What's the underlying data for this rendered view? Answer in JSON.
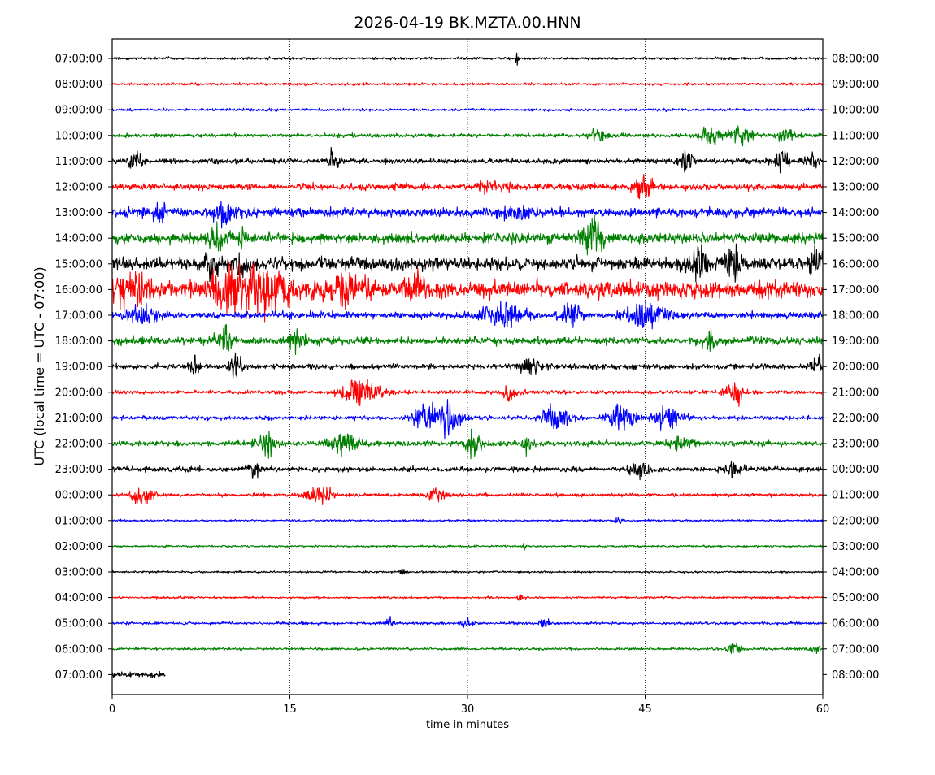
{
  "chart_data": {
    "type": "line",
    "title": "2026-04-19 BK.MZTA.00.HNN",
    "xlabel": "time in minutes",
    "ylabel": "UTC (local time = UTC - 07:00)",
    "xlim": [
      0,
      60
    ],
    "x_ticks": [
      0,
      15,
      30,
      45,
      60
    ],
    "grid_x": [
      15,
      30,
      45
    ],
    "grid": "x-only, dotted",
    "color_cycle": [
      "#000000",
      "#ff0000",
      "#0000ff",
      "#008000"
    ],
    "left_tick_labels": [
      "07:00:00",
      "08:00:00",
      "09:00:00",
      "10:00:00",
      "11:00:00",
      "12:00:00",
      "13:00:00",
      "14:00:00",
      "15:00:00",
      "16:00:00",
      "17:00:00",
      "18:00:00",
      "19:00:00",
      "20:00:00",
      "21:00:00",
      "22:00:00",
      "23:00:00",
      "00:00:00",
      "01:00:00",
      "02:00:00",
      "03:00:00",
      "04:00:00",
      "05:00:00",
      "06:00:00",
      "07:00:00"
    ],
    "right_tick_labels": [
      "08:00:00",
      "09:00:00",
      "10:00:00",
      "11:00:00",
      "12:00:00",
      "13:00:00",
      "14:00:00",
      "15:00:00",
      "16:00:00",
      "17:00:00",
      "18:00:00",
      "19:00:00",
      "20:00:00",
      "21:00:00",
      "22:00:00",
      "23:00:00",
      "00:00:00",
      "01:00:00",
      "02:00:00",
      "03:00:00",
      "04:00:00",
      "05:00:00",
      "06:00:00",
      "07:00:00",
      "08:00:00"
    ],
    "traces": [
      {
        "start": "07:00:00",
        "end_minute": 60,
        "noise": 0.2,
        "bursts": [
          [
            34.2,
            0.05,
            5.5
          ]
        ]
      },
      {
        "start": "08:00:00",
        "end_minute": 60,
        "noise": 0.2,
        "bursts": []
      },
      {
        "start": "09:00:00",
        "end_minute": 60,
        "noise": 0.2,
        "bursts": []
      },
      {
        "start": "10:00:00",
        "end_minute": 60,
        "noise": 0.3,
        "bursts": [
          [
            41,
            0.5,
            1.2
          ],
          [
            50.5,
            0.6,
            1.4
          ],
          [
            53,
            0.8,
            1.5
          ],
          [
            57,
            0.6,
            1.0
          ]
        ]
      },
      {
        "start": "11:00:00",
        "end_minute": 60,
        "noise": 0.4,
        "bursts": [
          [
            2,
            0.5,
            1.2
          ],
          [
            18.7,
            0.3,
            1.8
          ],
          [
            48.5,
            0.4,
            1.6
          ],
          [
            56.5,
            0.4,
            1.4
          ],
          [
            59,
            0.4,
            1.2
          ]
        ]
      },
      {
        "start": "12:00:00",
        "end_minute": 60,
        "noise": 0.5,
        "bursts": [
          [
            44.8,
            0.5,
            2.0
          ],
          [
            32,
            0.8,
            1.0
          ]
        ]
      },
      {
        "start": "13:00:00",
        "end_minute": 60,
        "noise": 0.7,
        "bursts": [
          [
            9.5,
            0.6,
            1.8
          ],
          [
            34,
            0.8,
            1.2
          ],
          [
            4,
            0.6,
            1.0
          ]
        ]
      },
      {
        "start": "14:00:00",
        "end_minute": 60,
        "noise": 0.8,
        "bursts": [
          [
            8.8,
            0.6,
            1.6
          ],
          [
            40.5,
            0.6,
            2.8
          ],
          [
            11,
            0.3,
            1.4
          ]
        ]
      },
      {
        "start": "15:00:00",
        "end_minute": 60,
        "noise": 1.0,
        "bursts": [
          [
            8.5,
            0.5,
            1.8
          ],
          [
            10.8,
            0.3,
            2.2
          ],
          [
            52.5,
            0.5,
            2.4
          ],
          [
            59.5,
            0.4,
            2.0
          ],
          [
            49.5,
            0.6,
            2.0
          ]
        ]
      },
      {
        "start": "16:00:00",
        "end_minute": 60,
        "noise": 1.3,
        "bursts": [
          [
            1.5,
            1.5,
            2.2
          ],
          [
            10.5,
            1.8,
            2.4
          ],
          [
            13.5,
            1.2,
            2.8
          ],
          [
            20,
            1.0,
            2.0
          ],
          [
            25.5,
            0.6,
            1.6
          ]
        ]
      },
      {
        "start": "17:00:00",
        "end_minute": 60,
        "noise": 0.5,
        "bursts": [
          [
            2.5,
            0.8,
            1.6
          ],
          [
            33,
            1.2,
            2.0
          ],
          [
            38.7,
            0.6,
            2.0
          ],
          [
            45,
            1.2,
            2.2
          ]
        ]
      },
      {
        "start": "18:00:00",
        "end_minute": 60,
        "noise": 0.6,
        "bursts": [
          [
            9.5,
            0.6,
            1.8
          ],
          [
            15.5,
            0.5,
            1.6
          ],
          [
            50.5,
            0.4,
            1.4
          ]
        ]
      },
      {
        "start": "19:00:00",
        "end_minute": 60,
        "noise": 0.4,
        "bursts": [
          [
            10.5,
            0.4,
            2.2
          ],
          [
            35.5,
            0.8,
            1.2
          ],
          [
            59.5,
            0.3,
            2.0
          ],
          [
            7,
            0.3,
            1.4
          ]
        ]
      },
      {
        "start": "20:00:00",
        "end_minute": 60,
        "noise": 0.3,
        "bursts": [
          [
            21,
            1.2,
            2.0
          ],
          [
            52.5,
            0.6,
            1.8
          ],
          [
            33.5,
            0.5,
            1.4
          ]
        ]
      },
      {
        "start": "21:00:00",
        "end_minute": 60,
        "noise": 0.3,
        "bursts": [
          [
            26.5,
            0.7,
            2.8
          ],
          [
            28.5,
            0.6,
            3.0
          ],
          [
            37.5,
            0.8,
            2.0
          ],
          [
            43,
            0.7,
            2.2
          ],
          [
            47,
            0.8,
            2.0
          ]
        ]
      },
      {
        "start": "22:00:00",
        "end_minute": 60,
        "noise": 0.4,
        "bursts": [
          [
            13,
            0.6,
            1.8
          ],
          [
            19.5,
            0.9,
            1.8
          ],
          [
            30.5,
            0.5,
            2.0
          ],
          [
            35,
            0.3,
            1.8
          ],
          [
            48,
            0.8,
            1.0
          ]
        ]
      },
      {
        "start": "23:00:00",
        "end_minute": 60,
        "noise": 0.4,
        "bursts": [
          [
            12,
            0.3,
            1.6
          ],
          [
            44.5,
            0.6,
            1.2
          ],
          [
            52.5,
            0.5,
            1.2
          ]
        ]
      },
      {
        "start": "00:00:00",
        "end_minute": 60,
        "noise": 0.25,
        "bursts": [
          [
            2.5,
            0.6,
            1.6
          ],
          [
            17.5,
            0.8,
            1.6
          ],
          [
            27.5,
            0.5,
            1.6
          ]
        ]
      },
      {
        "start": "01:00:00",
        "end_minute": 60,
        "noise": 0.15,
        "bursts": [
          [
            42.8,
            0.2,
            0.8
          ]
        ]
      },
      {
        "start": "02:00:00",
        "end_minute": 60,
        "noise": 0.15,
        "bursts": [
          [
            34.8,
            0.1,
            0.8
          ]
        ]
      },
      {
        "start": "03:00:00",
        "end_minute": 60,
        "noise": 0.15,
        "bursts": [
          [
            24.5,
            0.2,
            0.6
          ]
        ]
      },
      {
        "start": "04:00:00",
        "end_minute": 60,
        "noise": 0.15,
        "bursts": [
          [
            34.5,
            0.2,
            0.7
          ]
        ]
      },
      {
        "start": "05:00:00",
        "end_minute": 60,
        "noise": 0.2,
        "bursts": [
          [
            23.5,
            0.2,
            1.2
          ],
          [
            30,
            0.4,
            0.8
          ],
          [
            36.5,
            0.3,
            0.8
          ]
        ]
      },
      {
        "start": "06:00:00",
        "end_minute": 60,
        "noise": 0.2,
        "bursts": [
          [
            52.5,
            0.4,
            1.2
          ],
          [
            59.5,
            0.4,
            0.8
          ]
        ]
      },
      {
        "start": "07:00:00",
        "end_minute": 4.5,
        "noise": 0.4,
        "bursts": []
      }
    ]
  }
}
